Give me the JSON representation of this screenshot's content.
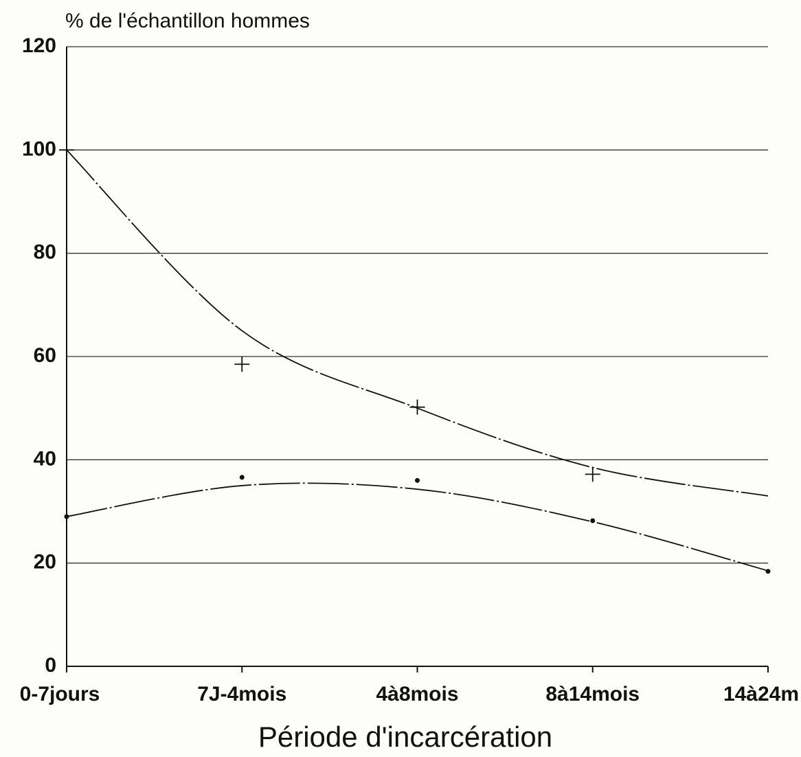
{
  "chart_data": {
    "type": "line",
    "y_axis_label": "% de l'échantillon hommes",
    "x_axis_label": "Période d'incarcération",
    "categories": [
      "0-7jours",
      "7J-4mois",
      "4à8mois",
      "8à14mois",
      "14à24m"
    ],
    "series": [
      {
        "color": "#111111",
        "marker": "plus",
        "line": false,
        "values": [
          100,
          58.5,
          50.2,
          37.2,
          null
        ]
      },
      {
        "color": "#111111",
        "marker": "dot",
        "line": false,
        "values": [
          29,
          36.6,
          36,
          28.2,
          18.4
        ]
      },
      {
        "color": "#111111",
        "marker": "none",
        "line": true,
        "values": [
          100,
          65,
          50,
          38.5,
          33
        ]
      },
      {
        "color": "#111111",
        "marker": "none",
        "line": true,
        "values": [
          29,
          35,
          34.3,
          28,
          18.5
        ]
      }
    ],
    "ylim": [
      0,
      120
    ],
    "yticks": [
      0,
      20,
      40,
      60,
      80,
      100,
      120
    ],
    "grid": true
  }
}
